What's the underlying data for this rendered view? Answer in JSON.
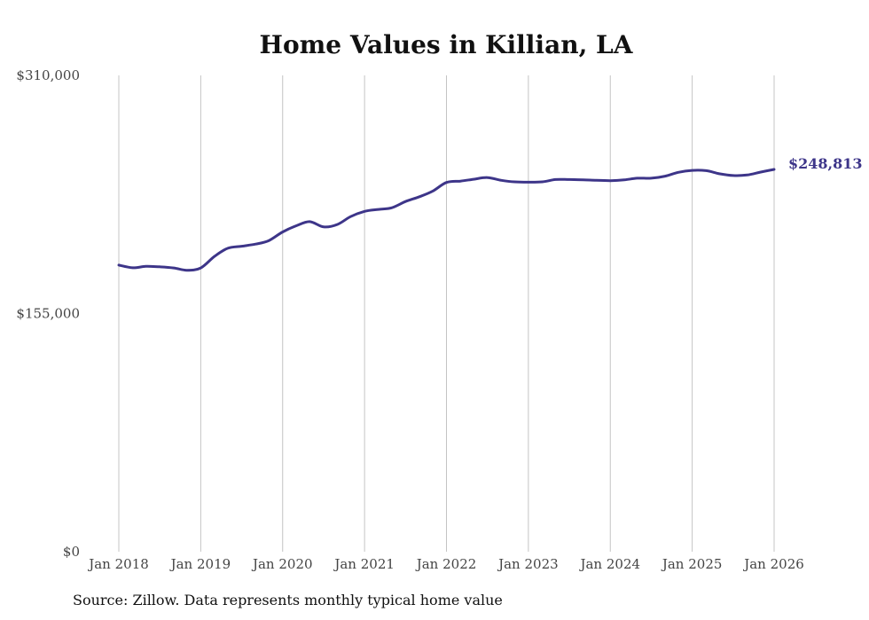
{
  "chart_data": {
    "type": "line",
    "title": "Home Values in Killian, LA",
    "xlabel": "",
    "ylabel": "",
    "ylim": [
      0,
      310000
    ],
    "y_ticks": [
      0,
      155000,
      310000
    ],
    "y_tick_labels": [
      "$0",
      "$155,000",
      "$310,000"
    ],
    "x_range": [
      2018.0,
      2026.0
    ],
    "x_ticks": [
      2018,
      2019,
      2020,
      2021,
      2022,
      2023,
      2024,
      2025,
      2026
    ],
    "x_tick_labels": [
      "Jan 2018",
      "Jan 2019",
      "Jan 2020",
      "Jan 2021",
      "Jan 2022",
      "Jan 2023",
      "Jan 2024",
      "Jan 2025",
      "Jan 2026"
    ],
    "grid": "vertical",
    "color": "#3d3589",
    "end_label": "$248,813",
    "series": [
      {
        "name": "Typical home value",
        "points": [
          [
            2018.0,
            186500
          ],
          [
            2018.17,
            184800
          ],
          [
            2018.33,
            185700
          ],
          [
            2018.5,
            185400
          ],
          [
            2018.67,
            184700
          ],
          [
            2018.83,
            183200
          ],
          [
            2019.0,
            184700
          ],
          [
            2019.17,
            192300
          ],
          [
            2019.33,
            197500
          ],
          [
            2019.5,
            198800
          ],
          [
            2019.67,
            200200
          ],
          [
            2019.83,
            202400
          ],
          [
            2020.0,
            208100
          ],
          [
            2020.17,
            212200
          ],
          [
            2020.33,
            214800
          ],
          [
            2020.5,
            211400
          ],
          [
            2020.67,
            213000
          ],
          [
            2020.83,
            218100
          ],
          [
            2021.0,
            221500
          ],
          [
            2021.17,
            222800
          ],
          [
            2021.33,
            223800
          ],
          [
            2021.5,
            227900
          ],
          [
            2021.67,
            231000
          ],
          [
            2021.83,
            234600
          ],
          [
            2022.0,
            240300
          ],
          [
            2022.17,
            241200
          ],
          [
            2022.33,
            242400
          ],
          [
            2022.5,
            243500
          ],
          [
            2022.67,
            241700
          ],
          [
            2022.83,
            240700
          ],
          [
            2023.0,
            240500
          ],
          [
            2023.17,
            240700
          ],
          [
            2023.33,
            242200
          ],
          [
            2023.5,
            242200
          ],
          [
            2023.67,
            242000
          ],
          [
            2023.83,
            241700
          ],
          [
            2024.0,
            241500
          ],
          [
            2024.17,
            242000
          ],
          [
            2024.33,
            243100
          ],
          [
            2024.5,
            243100
          ],
          [
            2024.67,
            244400
          ],
          [
            2024.83,
            246900
          ],
          [
            2025.0,
            248200
          ],
          [
            2025.17,
            248000
          ],
          [
            2025.33,
            246000
          ],
          [
            2025.5,
            244800
          ],
          [
            2025.67,
            245200
          ],
          [
            2025.83,
            247000
          ],
          [
            2026.0,
            248813
          ]
        ]
      }
    ]
  },
  "footer": {
    "source": "Source: Zillow. Data represents monthly typical home value"
  }
}
